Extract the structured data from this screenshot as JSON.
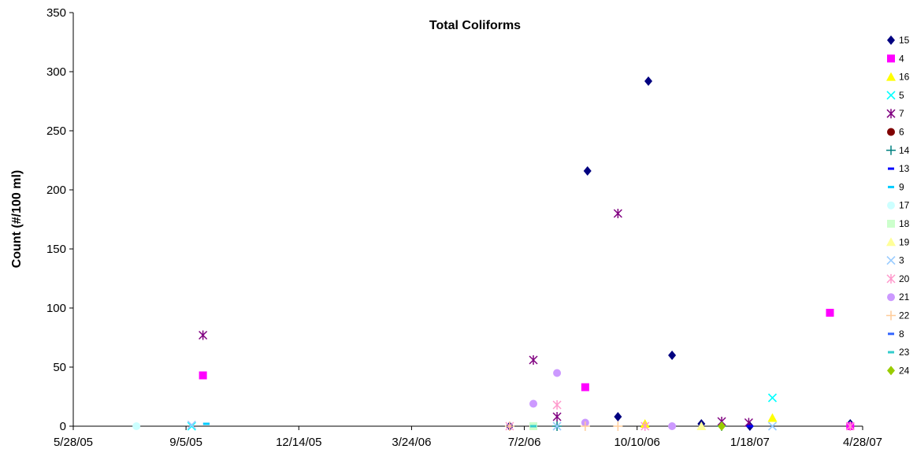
{
  "chart_data": {
    "type": "scatter",
    "title": "Total Coliforms",
    "xlabel": "",
    "ylabel": "Count (#/100 ml)",
    "x_axis": {
      "type": "date",
      "min": "2005-05-28",
      "max": "2007-04-28",
      "ticks": [
        "5/28/05",
        "9/5/05",
        "12/14/05",
        "3/24/06",
        "7/2/06",
        "10/10/06",
        "1/18/07",
        "4/28/07"
      ]
    },
    "y_axis": {
      "min": 0,
      "max": 350,
      "ticks": [
        "0",
        "50",
        "100",
        "150",
        "200",
        "250",
        "300",
        "350"
      ]
    },
    "grid": false,
    "legend_position": "right",
    "series": [
      {
        "name": "15",
        "marker": "diamond",
        "color": "#000080",
        "points": [
          [
            "2006-06-19",
            0
          ],
          [
            "2006-08-27",
            216
          ],
          [
            "2006-09-23",
            8
          ],
          [
            "2006-10-20",
            292
          ],
          [
            "2006-11-10",
            60
          ],
          [
            "2006-12-06",
            2
          ],
          [
            "2007-01-18",
            0
          ],
          [
            "2007-04-17",
            2
          ]
        ]
      },
      {
        "name": "4",
        "marker": "square",
        "color": "#FF00FF",
        "points": [
          [
            "2005-09-20",
            43
          ],
          [
            "2006-08-25",
            33
          ],
          [
            "2007-03-30",
            96
          ],
          [
            "2007-04-17",
            0
          ]
        ]
      },
      {
        "name": "16",
        "marker": "triangle",
        "color": "#FFFF00",
        "points": [
          [
            "2006-10-17",
            2
          ],
          [
            "2007-02-07",
            7
          ]
        ]
      },
      {
        "name": "5",
        "marker": "x",
        "color": "#00FFFF",
        "points": [
          [
            "2005-09-10",
            0
          ],
          [
            "2007-02-07",
            24
          ]
        ]
      },
      {
        "name": "7",
        "marker": "star",
        "color": "#800080",
        "points": [
          [
            "2005-09-20",
            77
          ],
          [
            "2006-07-10",
            56
          ],
          [
            "2006-07-31",
            8
          ],
          [
            "2006-09-23",
            180
          ],
          [
            "2006-12-24",
            4
          ],
          [
            "2007-01-17",
            3
          ]
        ]
      },
      {
        "name": "6",
        "marker": "circle",
        "color": "#800000",
        "points": []
      },
      {
        "name": "14",
        "marker": "plus",
        "color": "#008080",
        "points": [
          [
            "2006-07-31",
            0
          ],
          [
            "2006-12-24",
            0
          ]
        ]
      },
      {
        "name": "13",
        "marker": "dash",
        "color": "#0000FF",
        "points": [
          [
            "2005-09-23",
            2
          ],
          [
            "2007-01-18",
            0
          ]
        ]
      },
      {
        "name": "9",
        "marker": "dash",
        "color": "#00CCFF",
        "points": [
          [
            "2005-09-23",
            2
          ]
        ]
      },
      {
        "name": "17",
        "marker": "circle",
        "color": "#CCFFFF",
        "points": [
          [
            "2005-07-23",
            0
          ]
        ]
      },
      {
        "name": "18",
        "marker": "square",
        "color": "#CCFFCC",
        "points": [
          [
            "2006-07-10",
            0
          ]
        ]
      },
      {
        "name": "19",
        "marker": "triangle",
        "color": "#FFFF99",
        "points": [
          [
            "2006-12-06",
            0
          ]
        ]
      },
      {
        "name": "3",
        "marker": "x",
        "color": "#99CCFF",
        "points": [
          [
            "2005-09-10",
            1
          ],
          [
            "2006-07-31",
            0
          ],
          [
            "2007-02-07",
            0
          ]
        ]
      },
      {
        "name": "20",
        "marker": "star",
        "color": "#FF99CC",
        "points": [
          [
            "2006-06-19",
            0
          ],
          [
            "2006-07-31",
            18
          ],
          [
            "2006-10-17",
            0
          ],
          [
            "2007-04-17",
            0
          ]
        ]
      },
      {
        "name": "21",
        "marker": "circle",
        "color": "#CC99FF",
        "points": [
          [
            "2006-07-10",
            19
          ],
          [
            "2006-07-31",
            45
          ],
          [
            "2006-08-25",
            3
          ],
          [
            "2006-11-10",
            0
          ]
        ]
      },
      {
        "name": "22",
        "marker": "plus",
        "color": "#FFCC99",
        "points": [
          [
            "2006-06-19",
            0
          ],
          [
            "2006-08-25",
            0
          ],
          [
            "2006-09-23",
            0
          ]
        ]
      },
      {
        "name": "8",
        "marker": "dash",
        "color": "#3366FF",
        "points": [
          [
            "2006-07-10",
            0
          ]
        ]
      },
      {
        "name": "23",
        "marker": "dash",
        "color": "#33CCCC",
        "points": [
          [
            "2006-07-10",
            0
          ]
        ]
      },
      {
        "name": "24",
        "marker": "diamond",
        "color": "#99CC00",
        "points": [
          [
            "2006-12-24",
            0
          ]
        ]
      }
    ]
  }
}
